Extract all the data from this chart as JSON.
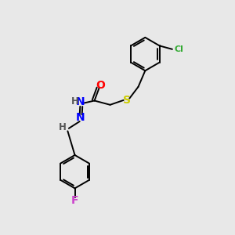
{
  "bg_color": "#e8e8e8",
  "line_color": "#000000",
  "S_color": "#cccc00",
  "O_color": "#ff0000",
  "N_color": "#0000ff",
  "F_color": "#cc44cc",
  "Cl_color": "#33aa33",
  "H_color": "#555555",
  "lw": 1.4,
  "ring_r": 0.72,
  "figsize": [
    3.0,
    3.0
  ],
  "dpi": 100,
  "xlim": [
    0,
    10
  ],
  "ylim": [
    0,
    10
  ]
}
